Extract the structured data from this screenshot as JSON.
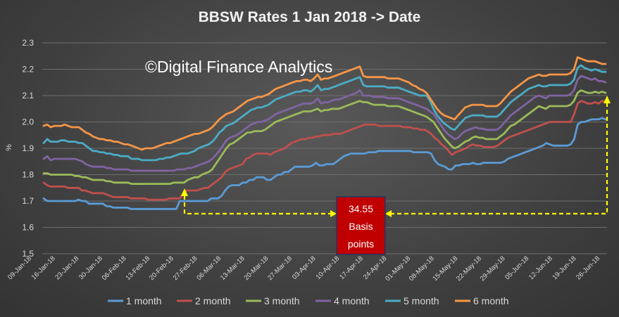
{
  "chart_data": {
    "type": "line",
    "title": "BBSW Rates 1 Jan 2018 -> Date",
    "watermark": "©Digital Finance Analytics",
    "ylabel": "%",
    "xlabel": "",
    "ylim": [
      1.5,
      2.3
    ],
    "yticks": [
      "1.5",
      "1.6",
      "1.7",
      "1.8",
      "1.9",
      "2.0",
      "2.1",
      "2.2",
      "2.3"
    ],
    "grid": true,
    "legend_position": "bottom",
    "x_tick_labels": [
      "09-Jan-18",
      "16-Jan-18",
      "23-Jan-18",
      "30-Jan-18",
      "06-Feb-18",
      "13-Feb-18",
      "20-Feb-18",
      "27-Feb-18",
      "06-Mar-18",
      "13-Mar-18",
      "20-Mar-18",
      "27-Mar-18",
      "03-Apr-18",
      "10-Apr-18",
      "17-Apr-18",
      "24-Apr-18",
      "01-May-18",
      "08-May-18",
      "15-May-18",
      "22-May-18",
      "29-May-18",
      "05-Jun-18",
      "12-Jun-18",
      "19-Jun-18",
      "26-Jun-18"
    ],
    "series": [
      {
        "name": "1 month",
        "color": "#5b9bd5",
        "values": [
          1.71,
          1.7,
          1.7,
          1.7,
          1.7,
          1.7,
          1.7,
          1.7,
          1.7,
          1.7,
          1.705,
          1.7,
          1.7,
          1.69,
          1.69,
          1.69,
          1.69,
          1.69,
          1.68,
          1.68,
          1.675,
          1.675,
          1.675,
          1.675,
          1.675,
          1.67,
          1.67,
          1.67,
          1.67,
          1.67,
          1.67,
          1.67,
          1.67,
          1.67,
          1.67,
          1.67,
          1.67,
          1.67,
          1.67,
          1.7,
          1.7,
          1.7,
          1.7,
          1.7,
          1.7,
          1.7,
          1.7,
          1.7,
          1.71,
          1.71,
          1.71,
          1.72,
          1.74,
          1.755,
          1.76,
          1.76,
          1.76,
          1.77,
          1.77,
          1.78,
          1.78,
          1.79,
          1.79,
          1.79,
          1.78,
          1.78,
          1.79,
          1.8,
          1.8,
          1.81,
          1.81,
          1.82,
          1.83,
          1.83,
          1.83,
          1.83,
          1.83,
          1.835,
          1.845,
          1.835,
          1.835,
          1.84,
          1.84,
          1.84,
          1.85,
          1.86,
          1.87,
          1.875,
          1.88,
          1.88,
          1.88,
          1.88,
          1.88,
          1.885,
          1.885,
          1.885,
          1.89,
          1.89,
          1.89,
          1.89,
          1.89,
          1.89,
          1.89,
          1.89,
          1.89,
          1.89,
          1.885,
          1.885,
          1.885,
          1.885,
          1.885,
          1.88,
          1.855,
          1.84,
          1.835,
          1.83,
          1.82,
          1.82,
          1.835,
          1.835,
          1.84,
          1.84,
          1.84,
          1.845,
          1.84,
          1.84,
          1.845,
          1.845,
          1.845,
          1.845,
          1.845,
          1.845,
          1.85,
          1.86,
          1.865,
          1.87,
          1.875,
          1.88,
          1.885,
          1.89,
          1.895,
          1.9,
          1.905,
          1.91,
          1.92,
          1.915,
          1.91,
          1.91,
          1.91,
          1.91,
          1.91,
          1.915,
          1.935,
          1.99,
          2.0,
          2.0,
          2.005,
          2.01,
          2.01,
          2.01,
          2.015,
          2.01
        ]
      },
      {
        "name": "2 month",
        "color": "#c0504d",
        "values": [
          1.77,
          1.76,
          1.755,
          1.755,
          1.755,
          1.755,
          1.755,
          1.75,
          1.75,
          1.75,
          1.75,
          1.74,
          1.74,
          1.735,
          1.73,
          1.73,
          1.73,
          1.73,
          1.725,
          1.72,
          1.715,
          1.715,
          1.715,
          1.715,
          1.715,
          1.71,
          1.71,
          1.71,
          1.71,
          1.71,
          1.705,
          1.705,
          1.705,
          1.705,
          1.705,
          1.705,
          1.71,
          1.71,
          1.71,
          1.71,
          1.73,
          1.74,
          1.74,
          1.74,
          1.74,
          1.745,
          1.75,
          1.75,
          1.76,
          1.77,
          1.78,
          1.79,
          1.81,
          1.82,
          1.825,
          1.83,
          1.835,
          1.84,
          1.86,
          1.865,
          1.875,
          1.88,
          1.88,
          1.88,
          1.88,
          1.875,
          1.885,
          1.89,
          1.895,
          1.9,
          1.91,
          1.92,
          1.925,
          1.93,
          1.935,
          1.935,
          1.94,
          1.94,
          1.945,
          1.945,
          1.95,
          1.95,
          1.95,
          1.955,
          1.955,
          1.955,
          1.96,
          1.965,
          1.97,
          1.975,
          1.98,
          1.985,
          1.99,
          1.99,
          1.99,
          1.99,
          1.985,
          1.985,
          1.985,
          1.985,
          1.985,
          1.985,
          1.985,
          1.98,
          1.98,
          1.98,
          1.975,
          1.975,
          1.97,
          1.97,
          1.965,
          1.955,
          1.94,
          1.93,
          1.915,
          1.905,
          1.89,
          1.875,
          1.885,
          1.89,
          1.895,
          1.9,
          1.91,
          1.915,
          1.91,
          1.91,
          1.905,
          1.905,
          1.905,
          1.905,
          1.91,
          1.92,
          1.93,
          1.94,
          1.945,
          1.95,
          1.955,
          1.96,
          1.965,
          1.97,
          1.975,
          1.98,
          1.985,
          1.99,
          1.995,
          2.0,
          2.0,
          2.0,
          2.0,
          2.0,
          2.0,
          2.0,
          2.03,
          2.07,
          2.08,
          2.075,
          2.07,
          2.07,
          2.075,
          2.07,
          2.08,
          2.075
        ]
      },
      {
        "name": "3 month",
        "color": "#9bbb59",
        "values": [
          1.805,
          1.805,
          1.8,
          1.8,
          1.8,
          1.8,
          1.8,
          1.8,
          1.8,
          1.795,
          1.795,
          1.79,
          1.79,
          1.785,
          1.78,
          1.78,
          1.78,
          1.78,
          1.775,
          1.775,
          1.77,
          1.77,
          1.77,
          1.77,
          1.77,
          1.765,
          1.765,
          1.765,
          1.765,
          1.765,
          1.765,
          1.765,
          1.765,
          1.765,
          1.765,
          1.765,
          1.765,
          1.77,
          1.77,
          1.77,
          1.77,
          1.78,
          1.785,
          1.79,
          1.79,
          1.8,
          1.805,
          1.81,
          1.82,
          1.84,
          1.86,
          1.88,
          1.9,
          1.915,
          1.92,
          1.93,
          1.94,
          1.95,
          1.96,
          1.96,
          1.965,
          1.965,
          1.965,
          1.97,
          1.98,
          1.99,
          2.0,
          2.005,
          2.01,
          2.015,
          2.02,
          2.025,
          2.03,
          2.035,
          2.04,
          2.04,
          2.04,
          2.045,
          2.05,
          2.04,
          2.045,
          2.045,
          2.05,
          2.05,
          2.05,
          2.055,
          2.06,
          2.065,
          2.07,
          2.075,
          2.08,
          2.075,
          2.075,
          2.07,
          2.065,
          2.065,
          2.065,
          2.065,
          2.06,
          2.06,
          2.06,
          2.06,
          2.055,
          2.05,
          2.045,
          2.04,
          2.035,
          2.03,
          2.025,
          2.02,
          2.01,
          2.0,
          1.98,
          1.96,
          1.94,
          1.925,
          1.91,
          1.9,
          1.905,
          1.915,
          1.925,
          1.93,
          1.94,
          1.945,
          1.94,
          1.94,
          1.935,
          1.935,
          1.935,
          1.935,
          1.945,
          1.955,
          1.97,
          1.985,
          1.99,
          2.0,
          2.01,
          2.02,
          2.03,
          2.04,
          2.05,
          2.06,
          2.055,
          2.05,
          2.06,
          2.06,
          2.06,
          2.06,
          2.06,
          2.06,
          2.065,
          2.08,
          2.11,
          2.12,
          2.115,
          2.11,
          2.11,
          2.115,
          2.11,
          2.115,
          2.11
        ]
      },
      {
        "name": "4 month",
        "color": "#8064a2",
        "values": [
          1.86,
          1.87,
          1.855,
          1.86,
          1.86,
          1.86,
          1.86,
          1.86,
          1.86,
          1.86,
          1.855,
          1.85,
          1.84,
          1.835,
          1.83,
          1.83,
          1.83,
          1.83,
          1.825,
          1.825,
          1.82,
          1.82,
          1.82,
          1.82,
          1.82,
          1.815,
          1.815,
          1.815,
          1.815,
          1.815,
          1.815,
          1.815,
          1.815,
          1.815,
          1.815,
          1.815,
          1.815,
          1.815,
          1.82,
          1.82,
          1.82,
          1.825,
          1.825,
          1.83,
          1.835,
          1.84,
          1.845,
          1.85,
          1.86,
          1.875,
          1.89,
          1.91,
          1.93,
          1.94,
          1.945,
          1.95,
          1.96,
          1.97,
          1.98,
          1.99,
          1.995,
          2.0,
          2.0,
          2.005,
          2.01,
          2.02,
          2.03,
          2.035,
          2.04,
          2.045,
          2.05,
          2.055,
          2.06,
          2.065,
          2.07,
          2.07,
          2.07,
          2.075,
          2.09,
          2.07,
          2.075,
          2.075,
          2.08,
          2.085,
          2.085,
          2.09,
          2.095,
          2.1,
          2.105,
          2.11,
          2.12,
          2.1,
          2.1,
          2.1,
          2.095,
          2.095,
          2.095,
          2.095,
          2.09,
          2.09,
          2.09,
          2.09,
          2.085,
          2.08,
          2.075,
          2.07,
          2.065,
          2.06,
          2.055,
          2.05,
          2.04,
          2.03,
          2.01,
          1.99,
          1.97,
          1.955,
          1.945,
          1.935,
          1.94,
          1.955,
          1.965,
          1.97,
          1.975,
          1.98,
          1.975,
          1.975,
          1.97,
          1.97,
          1.97,
          1.97,
          1.98,
          1.995,
          2.01,
          2.025,
          2.035,
          2.045,
          2.055,
          2.065,
          2.075,
          2.085,
          2.095,
          2.1,
          2.095,
          2.09,
          2.1,
          2.1,
          2.1,
          2.1,
          2.1,
          2.1,
          2.105,
          2.12,
          2.16,
          2.175,
          2.17,
          2.165,
          2.16,
          2.165,
          2.155,
          2.155,
          2.15
        ]
      },
      {
        "name": "5 month",
        "color": "#4bacc6",
        "values": [
          1.92,
          1.935,
          1.925,
          1.925,
          1.925,
          1.93,
          1.93,
          1.925,
          1.925,
          1.925,
          1.92,
          1.92,
          1.91,
          1.9,
          1.89,
          1.89,
          1.885,
          1.885,
          1.88,
          1.88,
          1.875,
          1.875,
          1.87,
          1.87,
          1.87,
          1.86,
          1.86,
          1.86,
          1.855,
          1.855,
          1.855,
          1.855,
          1.855,
          1.86,
          1.86,
          1.865,
          1.865,
          1.87,
          1.875,
          1.88,
          1.88,
          1.88,
          1.885,
          1.89,
          1.9,
          1.905,
          1.91,
          1.915,
          1.925,
          1.94,
          1.96,
          1.97,
          1.985,
          1.99,
          1.995,
          2.005,
          2.015,
          2.025,
          2.035,
          2.045,
          2.05,
          2.055,
          2.055,
          2.06,
          2.065,
          2.075,
          2.085,
          2.09,
          2.095,
          2.1,
          2.105,
          2.11,
          2.115,
          2.115,
          2.12,
          2.12,
          2.115,
          2.125,
          2.14,
          2.12,
          2.125,
          2.125,
          2.13,
          2.135,
          2.14,
          2.145,
          2.15,
          2.155,
          2.16,
          2.165,
          2.17,
          2.14,
          2.135,
          2.135,
          2.135,
          2.135,
          2.135,
          2.135,
          2.13,
          2.13,
          2.13,
          2.13,
          2.125,
          2.12,
          2.115,
          2.11,
          2.105,
          2.1,
          2.1,
          2.1,
          2.08,
          2.05,
          2.025,
          2.01,
          1.995,
          1.985,
          1.975,
          1.97,
          1.985,
          2.0,
          2.015,
          2.02,
          2.025,
          2.025,
          2.025,
          2.025,
          2.02,
          2.02,
          2.02,
          2.02,
          2.03,
          2.045,
          2.06,
          2.075,
          2.085,
          2.095,
          2.105,
          2.115,
          2.125,
          2.13,
          2.135,
          2.14,
          2.135,
          2.135,
          2.14,
          2.14,
          2.14,
          2.14,
          2.14,
          2.14,
          2.145,
          2.16,
          2.205,
          2.215,
          2.205,
          2.2,
          2.195,
          2.2,
          2.195,
          2.19,
          2.19
        ]
      },
      {
        "name": "6 month",
        "color": "#f79646",
        "values": [
          1.985,
          1.99,
          1.98,
          1.985,
          1.985,
          1.985,
          1.99,
          1.985,
          1.98,
          1.98,
          1.98,
          1.97,
          1.96,
          1.955,
          1.945,
          1.94,
          1.935,
          1.935,
          1.93,
          1.93,
          1.925,
          1.925,
          1.92,
          1.915,
          1.915,
          1.91,
          1.905,
          1.9,
          1.895,
          1.9,
          1.9,
          1.9,
          1.905,
          1.91,
          1.915,
          1.92,
          1.92,
          1.925,
          1.93,
          1.935,
          1.94,
          1.945,
          1.95,
          1.955,
          1.955,
          1.96,
          1.965,
          1.97,
          1.98,
          1.995,
          2.01,
          2.02,
          2.03,
          2.035,
          2.04,
          2.05,
          2.06,
          2.07,
          2.08,
          2.085,
          2.09,
          2.095,
          2.095,
          2.1,
          2.105,
          2.115,
          2.125,
          2.13,
          2.135,
          2.14,
          2.145,
          2.15,
          2.155,
          2.155,
          2.16,
          2.16,
          2.155,
          2.165,
          2.18,
          2.16,
          2.165,
          2.165,
          2.17,
          2.175,
          2.18,
          2.185,
          2.19,
          2.195,
          2.2,
          2.205,
          2.21,
          2.175,
          2.17,
          2.17,
          2.17,
          2.17,
          2.17,
          2.17,
          2.165,
          2.165,
          2.165,
          2.165,
          2.16,
          2.155,
          2.15,
          2.14,
          2.135,
          2.125,
          2.12,
          2.11,
          2.09,
          2.07,
          2.05,
          2.035,
          2.025,
          2.02,
          2.015,
          2.01,
          2.025,
          2.04,
          2.055,
          2.06,
          2.065,
          2.065,
          2.065,
          2.065,
          2.06,
          2.06,
          2.06,
          2.06,
          2.07,
          2.085,
          2.1,
          2.115,
          2.125,
          2.135,
          2.145,
          2.155,
          2.165,
          2.17,
          2.175,
          2.18,
          2.175,
          2.175,
          2.18,
          2.18,
          2.18,
          2.18,
          2.18,
          2.18,
          2.185,
          2.2,
          2.245,
          2.24,
          2.235,
          2.23,
          2.23,
          2.23,
          2.225,
          2.22,
          2.22
        ]
      }
    ],
    "annotation": {
      "label_lines": [
        "34.55",
        "Basis",
        "points"
      ],
      "box_color": "#c00000",
      "arrow_color": "#ffff00"
    }
  }
}
